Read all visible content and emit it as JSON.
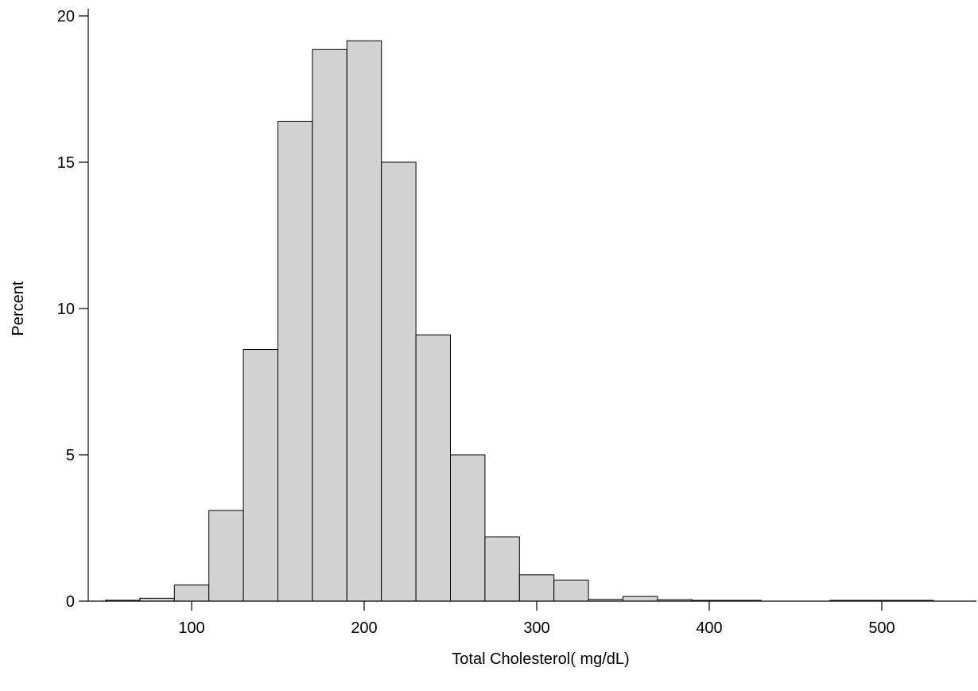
{
  "chart_data": {
    "type": "bar",
    "subtype": "histogram",
    "xlabel": "Total Cholesterol( mg/dL)",
    "ylabel": "Percent",
    "xlim": [
      50,
      530
    ],
    "ylim": [
      0,
      20
    ],
    "x_ticks": [
      100,
      200,
      300,
      400,
      500
    ],
    "y_ticks": [
      0,
      5,
      10,
      15,
      20
    ],
    "bar_fill": "#d3d3d3",
    "bar_stroke": "#000000",
    "grid": false,
    "legend": "none",
    "bins": [
      {
        "start": 50,
        "end": 70,
        "value": 0.03
      },
      {
        "start": 70,
        "end": 90,
        "value": 0.1
      },
      {
        "start": 90,
        "end": 110,
        "value": 0.55
      },
      {
        "start": 110,
        "end": 130,
        "value": 3.1
      },
      {
        "start": 130,
        "end": 150,
        "value": 8.6
      },
      {
        "start": 150,
        "end": 170,
        "value": 16.4
      },
      {
        "start": 170,
        "end": 190,
        "value": 18.85
      },
      {
        "start": 190,
        "end": 210,
        "value": 19.15
      },
      {
        "start": 210,
        "end": 230,
        "value": 15.0
      },
      {
        "start": 230,
        "end": 250,
        "value": 9.1
      },
      {
        "start": 250,
        "end": 270,
        "value": 5.0
      },
      {
        "start": 270,
        "end": 290,
        "value": 2.2
      },
      {
        "start": 290,
        "end": 310,
        "value": 0.9
      },
      {
        "start": 310,
        "end": 330,
        "value": 0.72
      },
      {
        "start": 330,
        "end": 350,
        "value": 0.06
      },
      {
        "start": 350,
        "end": 370,
        "value": 0.16
      },
      {
        "start": 370,
        "end": 390,
        "value": 0.05
      },
      {
        "start": 390,
        "end": 410,
        "value": 0.02
      },
      {
        "start": 410,
        "end": 430,
        "value": 0.01
      },
      {
        "start": 470,
        "end": 490,
        "value": 0.01
      },
      {
        "start": 490,
        "end": 510,
        "value": 0.01
      },
      {
        "start": 510,
        "end": 530,
        "value": 0.01
      }
    ]
  }
}
